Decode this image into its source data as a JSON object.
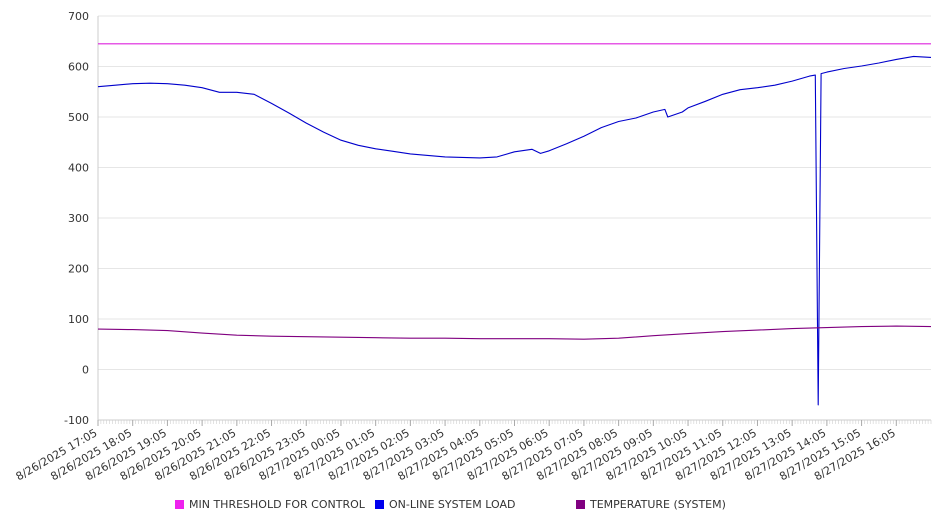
{
  "chart_data": {
    "type": "line",
    "title": "",
    "xlabel": "",
    "ylabel": "",
    "ylim": [
      -100,
      700
    ],
    "yticks": [
      700,
      600,
      500,
      400,
      300,
      200,
      100,
      0,
      -100
    ],
    "x_start": "8/26/2025 17:05",
    "x_end": "8/27/2025 17:05",
    "x_tick_labels": [
      "8/26/2025 17:05",
      "8/26/2025 18:05",
      "8/26/2025 19:05",
      "8/26/2025 20:05",
      "8/26/2025 21:05",
      "8/26/2025 22:05",
      "8/26/2025 23:05",
      "8/27/2025 00:05",
      "8/27/2025 01:05",
      "8/27/2025 02:05",
      "8/27/2025 03:05",
      "8/27/2025 04:05",
      "8/27/2025 05:05",
      "8/27/2025 06:05",
      "8/27/2025 07:05",
      "8/27/2025 08:05",
      "8/27/2025 09:05",
      "8/27/2025 10:05",
      "8/27/2025 11:05",
      "8/27/2025 12:05",
      "8/27/2025 13:05",
      "8/27/2025 14:05",
      "8/27/2025 15:05",
      "8/27/2025 16:05"
    ],
    "grid": true,
    "legend_position": "bottom",
    "series": [
      {
        "name": "MIN THRESHOLD FOR CONTROL",
        "color": "#dd22dd",
        "points": [
          [
            "8/26/2025 17:05",
            645
          ],
          [
            "8/27/2025 17:05",
            645
          ]
        ]
      },
      {
        "name": "ON-LINE SYSTEM LOAD",
        "color": "#0000cc",
        "points": [
          [
            "8/26/2025 17:05",
            560
          ],
          [
            "8/26/2025 17:35",
            563
          ],
          [
            "8/26/2025 18:05",
            566
          ],
          [
            "8/26/2025 18:35",
            567
          ],
          [
            "8/26/2025 19:05",
            566
          ],
          [
            "8/26/2025 19:35",
            563
          ],
          [
            "8/26/2025 20:05",
            558
          ],
          [
            "8/26/2025 20:35",
            549
          ],
          [
            "8/26/2025 21:05",
            549
          ],
          [
            "8/26/2025 21:35",
            545
          ],
          [
            "8/26/2025 22:05",
            527
          ],
          [
            "8/26/2025 22:35",
            508
          ],
          [
            "8/26/2025 23:05",
            488
          ],
          [
            "8/26/2025 23:35",
            470
          ],
          [
            "8/27/2025 00:05",
            454
          ],
          [
            "8/27/2025 00:35",
            444
          ],
          [
            "8/27/2025 01:05",
            437
          ],
          [
            "8/27/2025 01:35",
            432
          ],
          [
            "8/27/2025 02:05",
            427
          ],
          [
            "8/27/2025 02:35",
            424
          ],
          [
            "8/27/2025 03:05",
            421
          ],
          [
            "8/27/2025 03:35",
            420
          ],
          [
            "8/27/2025 04:05",
            419
          ],
          [
            "8/27/2025 04:35",
            421
          ],
          [
            "8/27/2025 05:05",
            431
          ],
          [
            "8/27/2025 05:35",
            436
          ],
          [
            "8/27/2025 05:50",
            428
          ],
          [
            "8/27/2025 06:05",
            433
          ],
          [
            "8/27/2025 06:35",
            447
          ],
          [
            "8/27/2025 07:05",
            462
          ],
          [
            "8/27/2025 07:35",
            479
          ],
          [
            "8/27/2025 08:05",
            491
          ],
          [
            "8/27/2025 08:35",
            498
          ],
          [
            "8/27/2025 09:05",
            510
          ],
          [
            "8/27/2025 09:25",
            515
          ],
          [
            "8/27/2025 09:30",
            500
          ],
          [
            "8/27/2025 09:55",
            510
          ],
          [
            "8/27/2025 10:05",
            518
          ],
          [
            "8/27/2025 10:35",
            531
          ],
          [
            "8/27/2025 11:05",
            545
          ],
          [
            "8/27/2025 11:35",
            554
          ],
          [
            "8/27/2025 12:05",
            558
          ],
          [
            "8/27/2025 12:35",
            563
          ],
          [
            "8/27/2025 13:05",
            571
          ],
          [
            "8/27/2025 13:35",
            581
          ],
          [
            "8/27/2025 13:45",
            583
          ],
          [
            "8/27/2025 13:50",
            -70
          ],
          [
            "8/27/2025 13:55",
            586
          ],
          [
            "8/27/2025 14:05",
            589
          ],
          [
            "8/27/2025 14:35",
            596
          ],
          [
            "8/27/2025 15:05",
            601
          ],
          [
            "8/27/2025 15:35",
            607
          ],
          [
            "8/27/2025 16:05",
            614
          ],
          [
            "8/27/2025 16:35",
            620
          ],
          [
            "8/27/2025 17:05",
            618
          ]
        ]
      },
      {
        "name": "TEMPERATURE (SYSTEM)",
        "color": "#800080",
        "points": [
          [
            "8/26/2025 17:05",
            80
          ],
          [
            "8/26/2025 18:05",
            79
          ],
          [
            "8/26/2025 19:05",
            77
          ],
          [
            "8/26/2025 20:05",
            72
          ],
          [
            "8/26/2025 21:05",
            68
          ],
          [
            "8/26/2025 22:05",
            66
          ],
          [
            "8/26/2025 23:05",
            65
          ],
          [
            "8/27/2025 00:05",
            64
          ],
          [
            "8/27/2025 01:05",
            63
          ],
          [
            "8/27/2025 02:05",
            62
          ],
          [
            "8/27/2025 03:05",
            62
          ],
          [
            "8/27/2025 04:05",
            61
          ],
          [
            "8/27/2025 05:05",
            61
          ],
          [
            "8/27/2025 06:05",
            61
          ],
          [
            "8/27/2025 07:05",
            60
          ],
          [
            "8/27/2025 08:05",
            62
          ],
          [
            "8/27/2025 09:05",
            67
          ],
          [
            "8/27/2025 10:05",
            71
          ],
          [
            "8/27/2025 11:05",
            75
          ],
          [
            "8/27/2025 12:05",
            78
          ],
          [
            "8/27/2025 13:05",
            81
          ],
          [
            "8/27/2025 14:05",
            83
          ],
          [
            "8/27/2025 15:05",
            85
          ],
          [
            "8/27/2025 16:05",
            86
          ],
          [
            "8/27/2025 17:05",
            85
          ]
        ]
      }
    ]
  },
  "legend": {
    "items": [
      {
        "label": "MIN THRESHOLD FOR CONTROL",
        "color": "#ee22ee"
      },
      {
        "label": "ON-LINE SYSTEM LOAD",
        "color": "#0000ee"
      },
      {
        "label": "TEMPERATURE (SYSTEM)",
        "color": "#800080"
      }
    ]
  }
}
